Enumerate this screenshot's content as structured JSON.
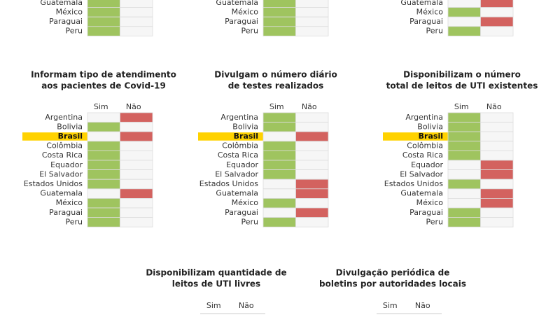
{
  "panels": [
    {
      "rows": [
        {
          "label": "Guatemala",
          "yes": true
        },
        {
          "label": "México",
          "yes": true
        },
        {
          "label": "Paraguai",
          "yes": true
        },
        {
          "label": "Peru",
          "yes": true
        }
      ]
    },
    {
      "rows": [
        {
          "label": "Guatemala",
          "yes": true
        },
        {
          "label": "México",
          "yes": true
        },
        {
          "label": "Paraguai",
          "yes": true
        },
        {
          "label": "Peru",
          "yes": true
        }
      ]
    },
    {
      "rows": [
        {
          "label": "Guatemala",
          "yes": false
        },
        {
          "label": "México",
          "yes": true
        },
        {
          "label": "Paraguai",
          "yes": false
        },
        {
          "label": "Peru",
          "yes": true
        }
      ]
    },
    {
      "title": [
        "Informam tipo de atendimento",
        "aos pacientes de Covid-19"
      ],
      "columns": [
        "Sim",
        "Não"
      ],
      "highlight": "Brasil",
      "rows": [
        {
          "label": "Argentina",
          "yes": false
        },
        {
          "label": "Bolivia",
          "yes": true
        },
        {
          "label": "Brasil",
          "yes": false
        },
        {
          "label": "Colômbia",
          "yes": true
        },
        {
          "label": "Costa Rica",
          "yes": true
        },
        {
          "label": "Equador",
          "yes": true
        },
        {
          "label": "El Salvador",
          "yes": true
        },
        {
          "label": "Estados Unidos",
          "yes": true
        },
        {
          "label": "Guatemala",
          "yes": false
        },
        {
          "label": "México",
          "yes": true
        },
        {
          "label": "Paraguai",
          "yes": true
        },
        {
          "label": "Peru",
          "yes": true
        }
      ]
    },
    {
      "title": [
        "Divulgam o número diário",
        "de testes realizados"
      ],
      "columns": [
        "Sim",
        "Não"
      ],
      "highlight": "Brasil",
      "rows": [
        {
          "label": "Argentina",
          "yes": true
        },
        {
          "label": "Bolivia",
          "yes": true
        },
        {
          "label": "Brasil",
          "yes": false
        },
        {
          "label": "Colômbia",
          "yes": true
        },
        {
          "label": "Costa Rica",
          "yes": true
        },
        {
          "label": "Equador",
          "yes": true
        },
        {
          "label": "El Salvador",
          "yes": true
        },
        {
          "label": "Estados Unidos",
          "yes": false
        },
        {
          "label": "Guatemala",
          "yes": false
        },
        {
          "label": "México",
          "yes": true
        },
        {
          "label": "Paraguai",
          "yes": false
        },
        {
          "label": "Peru",
          "yes": true
        }
      ]
    },
    {
      "title": [
        "Disponibilizam o número",
        "total de leitos de UTI existentes"
      ],
      "columns": [
        "Sim",
        "Não"
      ],
      "highlight": "Brasil",
      "rows": [
        {
          "label": "Argentina",
          "yes": true
        },
        {
          "label": "Bolivia",
          "yes": true
        },
        {
          "label": "Brasil",
          "yes": true
        },
        {
          "label": "Colômbia",
          "yes": true
        },
        {
          "label": "Costa Rica",
          "yes": true
        },
        {
          "label": "Equador",
          "yes": false
        },
        {
          "label": "El Salvador",
          "yes": false
        },
        {
          "label": "Estados Unidos",
          "yes": true
        },
        {
          "label": "Guatemala",
          "yes": false
        },
        {
          "label": "México",
          "yes": false
        },
        {
          "label": "Paraguai",
          "yes": true
        },
        {
          "label": "Peru",
          "yes": true
        }
      ]
    },
    {
      "title": [
        "Disponibilizam quantidade de",
        "leitos de UTI livres"
      ],
      "columns": [
        "Sim",
        "Não"
      ]
    },
    {
      "title": [
        "Divulgação periódica de",
        "boletins por autoridades locais"
      ],
      "columns": [
        "Sim",
        "Não"
      ]
    }
  ]
}
